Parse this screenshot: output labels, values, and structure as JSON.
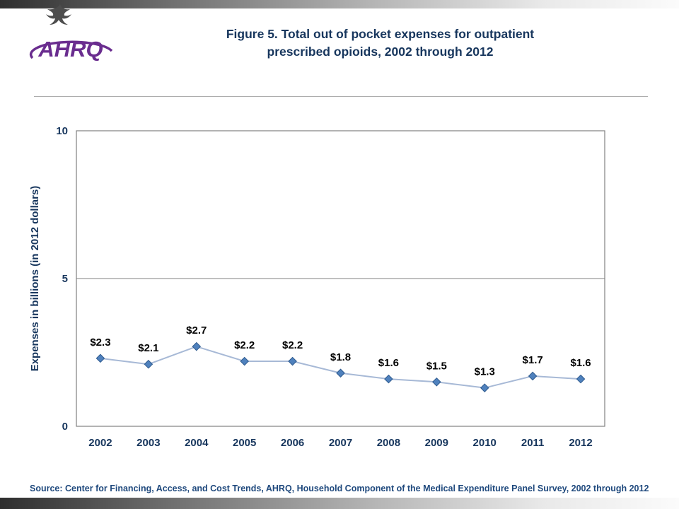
{
  "header": {
    "logo_text": "AHRQ",
    "title_line1": "Figure 5. Total out of pocket expenses for outpatient",
    "title_line2": "prescribed opioids, 2002 through 2012"
  },
  "footer": {
    "source": "Source: Center for Financing, Access, and Cost Trends, AHRQ, Household Component of the Medical Expenditure Panel Survey, 2002 through 2012"
  },
  "chart_data": {
    "type": "line",
    "categories": [
      "2002",
      "2003",
      "2004",
      "2005",
      "2006",
      "2007",
      "2008",
      "2009",
      "2010",
      "2011",
      "2012"
    ],
    "series": [
      {
        "name": "Total out of pocket expenses",
        "values": [
          2.3,
          2.1,
          2.7,
          2.2,
          2.2,
          1.8,
          1.6,
          1.5,
          1.3,
          1.7,
          1.6
        ]
      }
    ],
    "data_labels": [
      "$2.3",
      "$2.1",
      "$2.7",
      "$2.2",
      "$2.2",
      "$1.8",
      "$1.6",
      "$1.5",
      "$1.3",
      "$1.7",
      "$1.6"
    ],
    "ylabel": "Expenses in billions (in 2012 dollars)",
    "xlabel": "",
    "ylim": [
      0,
      10
    ],
    "yticks": [
      0,
      5,
      10
    ],
    "grid": "horizontal gridline at 5, plot area border",
    "legend": "none",
    "colors": {
      "line": "#a7b9d6",
      "marker_fill": "#4f81bd",
      "marker_stroke": "#2f5b8f",
      "axis_text": "#17365d",
      "data_label_text": "#000000",
      "border": "#808080",
      "title": "#17365d",
      "source_text": "#1f497d",
      "logo_purple": "#6a2d8f"
    }
  }
}
